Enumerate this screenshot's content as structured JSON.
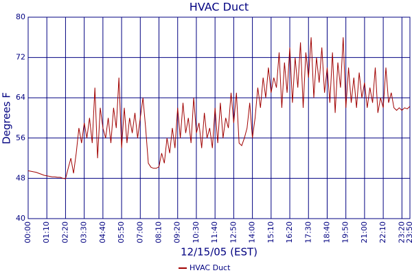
{
  "chart_data": {
    "type": "line",
    "title": "HVAC Duct",
    "xlabel": "12/15/05 (EST)",
    "ylabel": "Degrees F",
    "x": [
      "00:00",
      "00:10",
      "00:20",
      "00:30",
      "00:40",
      "00:50",
      "01:00",
      "01:10",
      "01:20",
      "01:30",
      "01:40",
      "01:50",
      "02:00",
      "02:10",
      "02:20",
      "02:30",
      "02:40",
      "02:50",
      "03:00",
      "03:10",
      "03:20",
      "03:30",
      "03:40",
      "03:50",
      "04:00",
      "04:10",
      "04:20",
      "04:30",
      "04:40",
      "04:50",
      "05:00",
      "05:10",
      "05:20",
      "05:30",
      "05:40",
      "05:50",
      "06:00",
      "06:10",
      "06:20",
      "06:30",
      "06:40",
      "06:50",
      "07:00",
      "07:10",
      "07:20",
      "07:30",
      "07:40",
      "07:50",
      "08:00",
      "08:10",
      "08:20",
      "08:30",
      "08:40",
      "08:50",
      "09:00",
      "09:10",
      "09:20",
      "09:30",
      "09:40",
      "09:50",
      "10:00",
      "10:10",
      "10:20",
      "10:30",
      "10:40",
      "10:50",
      "11:00",
      "11:10",
      "11:20",
      "11:30",
      "11:40",
      "11:50",
      "12:00",
      "12:10",
      "12:20",
      "12:30",
      "12:40",
      "12:50",
      "13:00",
      "13:10",
      "13:20",
      "13:30",
      "13:40",
      "13:50",
      "14:00",
      "14:10",
      "14:20",
      "14:30",
      "14:40",
      "14:50",
      "15:00",
      "15:10",
      "15:20",
      "15:30",
      "15:40",
      "15:50",
      "16:00",
      "16:10",
      "16:20",
      "16:30",
      "16:40",
      "16:50",
      "17:00",
      "17:10",
      "17:20",
      "17:30",
      "17:40",
      "17:50",
      "18:00",
      "18:10",
      "18:20",
      "18:30",
      "18:40",
      "18:50",
      "19:00",
      "19:10",
      "19:20",
      "19:30",
      "19:40",
      "19:50",
      "20:00",
      "20:10",
      "20:20",
      "20:30",
      "20:40",
      "20:50",
      "21:00",
      "21:10",
      "21:20",
      "21:30",
      "21:40",
      "21:50",
      "22:00",
      "22:10",
      "22:20",
      "22:30",
      "22:40",
      "22:50",
      "23:00",
      "23:10",
      "23:20",
      "23:30",
      "23:40",
      "23:50"
    ],
    "series": [
      {
        "name": "HVAC Duct",
        "color": "#a00000",
        "values": [
          49.5,
          49.4,
          49.3,
          49.2,
          49.0,
          48.8,
          48.6,
          48.5,
          48.4,
          48.3,
          48.3,
          48.2,
          48.2,
          48.0,
          47.9,
          50,
          52,
          49,
          53,
          58,
          55,
          59,
          56,
          60,
          55,
          66,
          52,
          62,
          58,
          56,
          60,
          55,
          62,
          58,
          68,
          54,
          62,
          55,
          60,
          57,
          61,
          56,
          60,
          64,
          58,
          51,
          50.2,
          50.0,
          50.0,
          50.3,
          53,
          51,
          56,
          53,
          58,
          54,
          62,
          56,
          63,
          57,
          60,
          55,
          64,
          57,
          59,
          54,
          61,
          56,
          58,
          54,
          62,
          55,
          63,
          56,
          60,
          58,
          65,
          59,
          65,
          55,
          54.5,
          56,
          58,
          63,
          56,
          60,
          66,
          62,
          68,
          64,
          70,
          65,
          68,
          66,
          73,
          62,
          71,
          65,
          74,
          63,
          72,
          66,
          75,
          62,
          73,
          68,
          76,
          64,
          72,
          67,
          74,
          65,
          70,
          63,
          73,
          61,
          71,
          66,
          76,
          62,
          70,
          63,
          68,
          62,
          69,
          64,
          67,
          62,
          66,
          63,
          70,
          61,
          64,
          62,
          70,
          63,
          65,
          62,
          61.5,
          62,
          61.5,
          62,
          61.8,
          62.3
        ]
      }
    ],
    "xlim": [
      "00:00",
      "23:50"
    ],
    "xticks": [
      "00:00",
      "01:10",
      "02:20",
      "03:30",
      "04:40",
      "05:50",
      "07:00",
      "08:10",
      "09:20",
      "10:30",
      "11:40",
      "12:50",
      "14:00",
      "15:10",
      "16:20",
      "17:30",
      "18:40",
      "19:50",
      "21:00",
      "22:10",
      "23:20",
      "23:50"
    ],
    "ylim": [
      40,
      80
    ],
    "yticks": [
      40,
      48,
      56,
      64,
      72,
      80
    ],
    "grid": true,
    "legend": "bottom"
  }
}
